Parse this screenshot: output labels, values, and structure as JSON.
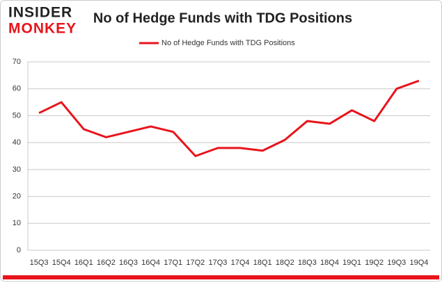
{
  "logo": {
    "line1": "INSIDER",
    "line2": "MONKEY"
  },
  "chart_data": {
    "type": "line",
    "title": "No of Hedge Funds with TDG Positions",
    "categories": [
      "15Q3",
      "15Q4",
      "16Q1",
      "16Q2",
      "16Q3",
      "16Q4",
      "17Q1",
      "17Q2",
      "17Q3",
      "17Q4",
      "18Q1",
      "18Q2",
      "18Q3",
      "18Q4",
      "19Q1",
      "19Q2",
      "19Q3",
      "19Q4"
    ],
    "series": [
      {
        "name": "No of Hedge Funds with TDG Positions",
        "color": "#e8141b",
        "values": [
          51,
          55,
          45,
          42,
          44,
          46,
          44,
          35,
          38,
          38,
          37,
          41,
          48,
          47,
          52,
          48,
          60,
          63
        ]
      }
    ],
    "ylim": [
      0,
      70
    ],
    "yticks": [
      0,
      10,
      20,
      30,
      40,
      50,
      60,
      70
    ],
    "grid": true,
    "legend": "top"
  }
}
